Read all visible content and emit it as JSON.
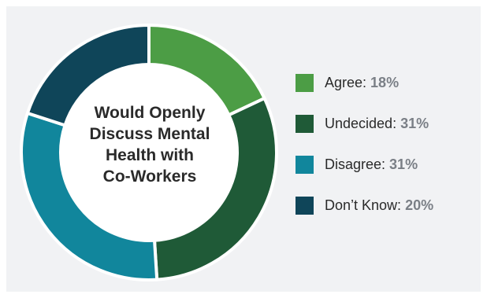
{
  "chart_data": {
    "type": "pie",
    "title": "Would Openly Discuss Mental Health with Co-Workers",
    "title_lines": [
      "Would Openly",
      "Discuss Mental",
      "Health with",
      "Co-Workers"
    ],
    "categories": [
      "Agree:",
      "Undecided:",
      "Disagree:",
      "Don’t Know:"
    ],
    "values": [
      18,
      31,
      31,
      20
    ],
    "value_labels": [
      "18%",
      "31%",
      "31%",
      "20%"
    ],
    "colors": [
      "#4c9d45",
      "#1f5a37",
      "#11869c",
      "#0f4559"
    ],
    "legend_position": "right",
    "style": "donut"
  }
}
